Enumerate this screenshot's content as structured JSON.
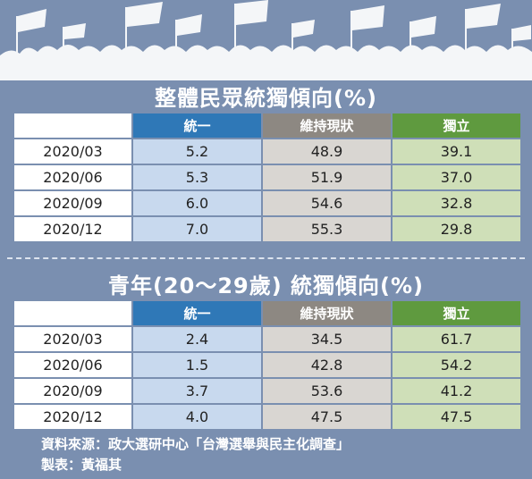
{
  "chart_data": [
    {
      "type": "table",
      "title": "整體民眾統獨傾向(%)",
      "columns": [
        "統一",
        "維持現狀",
        "獨立"
      ],
      "rows": [
        {
          "date": "2020/03",
          "values": [
            "5.2",
            "48.9",
            "39.1"
          ]
        },
        {
          "date": "2020/06",
          "values": [
            "5.3",
            "51.9",
            "37.0"
          ]
        },
        {
          "date": "2020/09",
          "values": [
            "6.0",
            "54.6",
            "32.8"
          ]
        },
        {
          "date": "2020/12",
          "values": [
            "7.0",
            "55.3",
            "29.8"
          ]
        }
      ]
    },
    {
      "type": "table",
      "title": "青年(20～29歲) 統獨傾向(%)",
      "columns": [
        "統一",
        "維持現狀",
        "獨立"
      ],
      "rows": [
        {
          "date": "2020/03",
          "values": [
            "2.4",
            "34.5",
            "61.7"
          ]
        },
        {
          "date": "2020/06",
          "values": [
            "1.5",
            "42.8",
            "54.2"
          ]
        },
        {
          "date": "2020/09",
          "values": [
            "3.7",
            "53.6",
            "41.2"
          ]
        },
        {
          "date": "2020/12",
          "values": [
            "4.0",
            "47.5",
            "47.5"
          ]
        }
      ]
    }
  ],
  "footer": {
    "source": "資料來源：政大選研中心「台灣選舉與民主化調查」",
    "author": "製表：黃福其"
  },
  "colors": {
    "background": "#7a8fb0",
    "unification": "#2f78b7",
    "status_quo": "#8d8882",
    "independence": "#5f9a3f"
  }
}
